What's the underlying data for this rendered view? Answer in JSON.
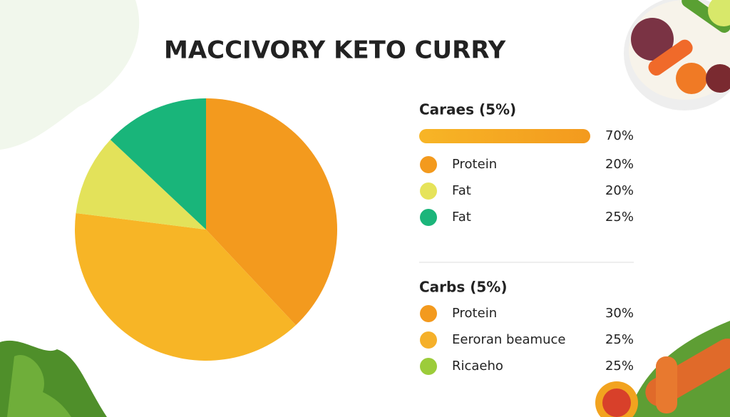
{
  "title": "MACCIVORY KETO CURRY",
  "chart_data": {
    "type": "pie",
    "values": [
      38,
      39,
      10,
      13
    ],
    "colors": [
      "#f39a1e",
      "#f7b526",
      "#e3e25a",
      "#19b57a"
    ]
  },
  "legend": {
    "sections": [
      {
        "heading": "Caraes (5%)",
        "bar_label": "70%",
        "items": [
          {
            "label": "Protein",
            "value": "20%",
            "color": "#f39a1e"
          },
          {
            "label": "Fat",
            "value": "20%",
            "color": "#e6e35a"
          },
          {
            "label": "Fat",
            "value": "25%",
            "color": "#1bb57a"
          }
        ]
      },
      {
        "heading": "Carbs (5%)",
        "items": [
          {
            "label": "Protein",
            "value": "30%",
            "color": "#f39a1e"
          },
          {
            "label": "Eeroran beamuce",
            "value": "25%",
            "color": "#f5b02a"
          },
          {
            "label": "Ricaeho",
            "value": "25%",
            "color": "#9ccc3a"
          }
        ]
      }
    ]
  }
}
